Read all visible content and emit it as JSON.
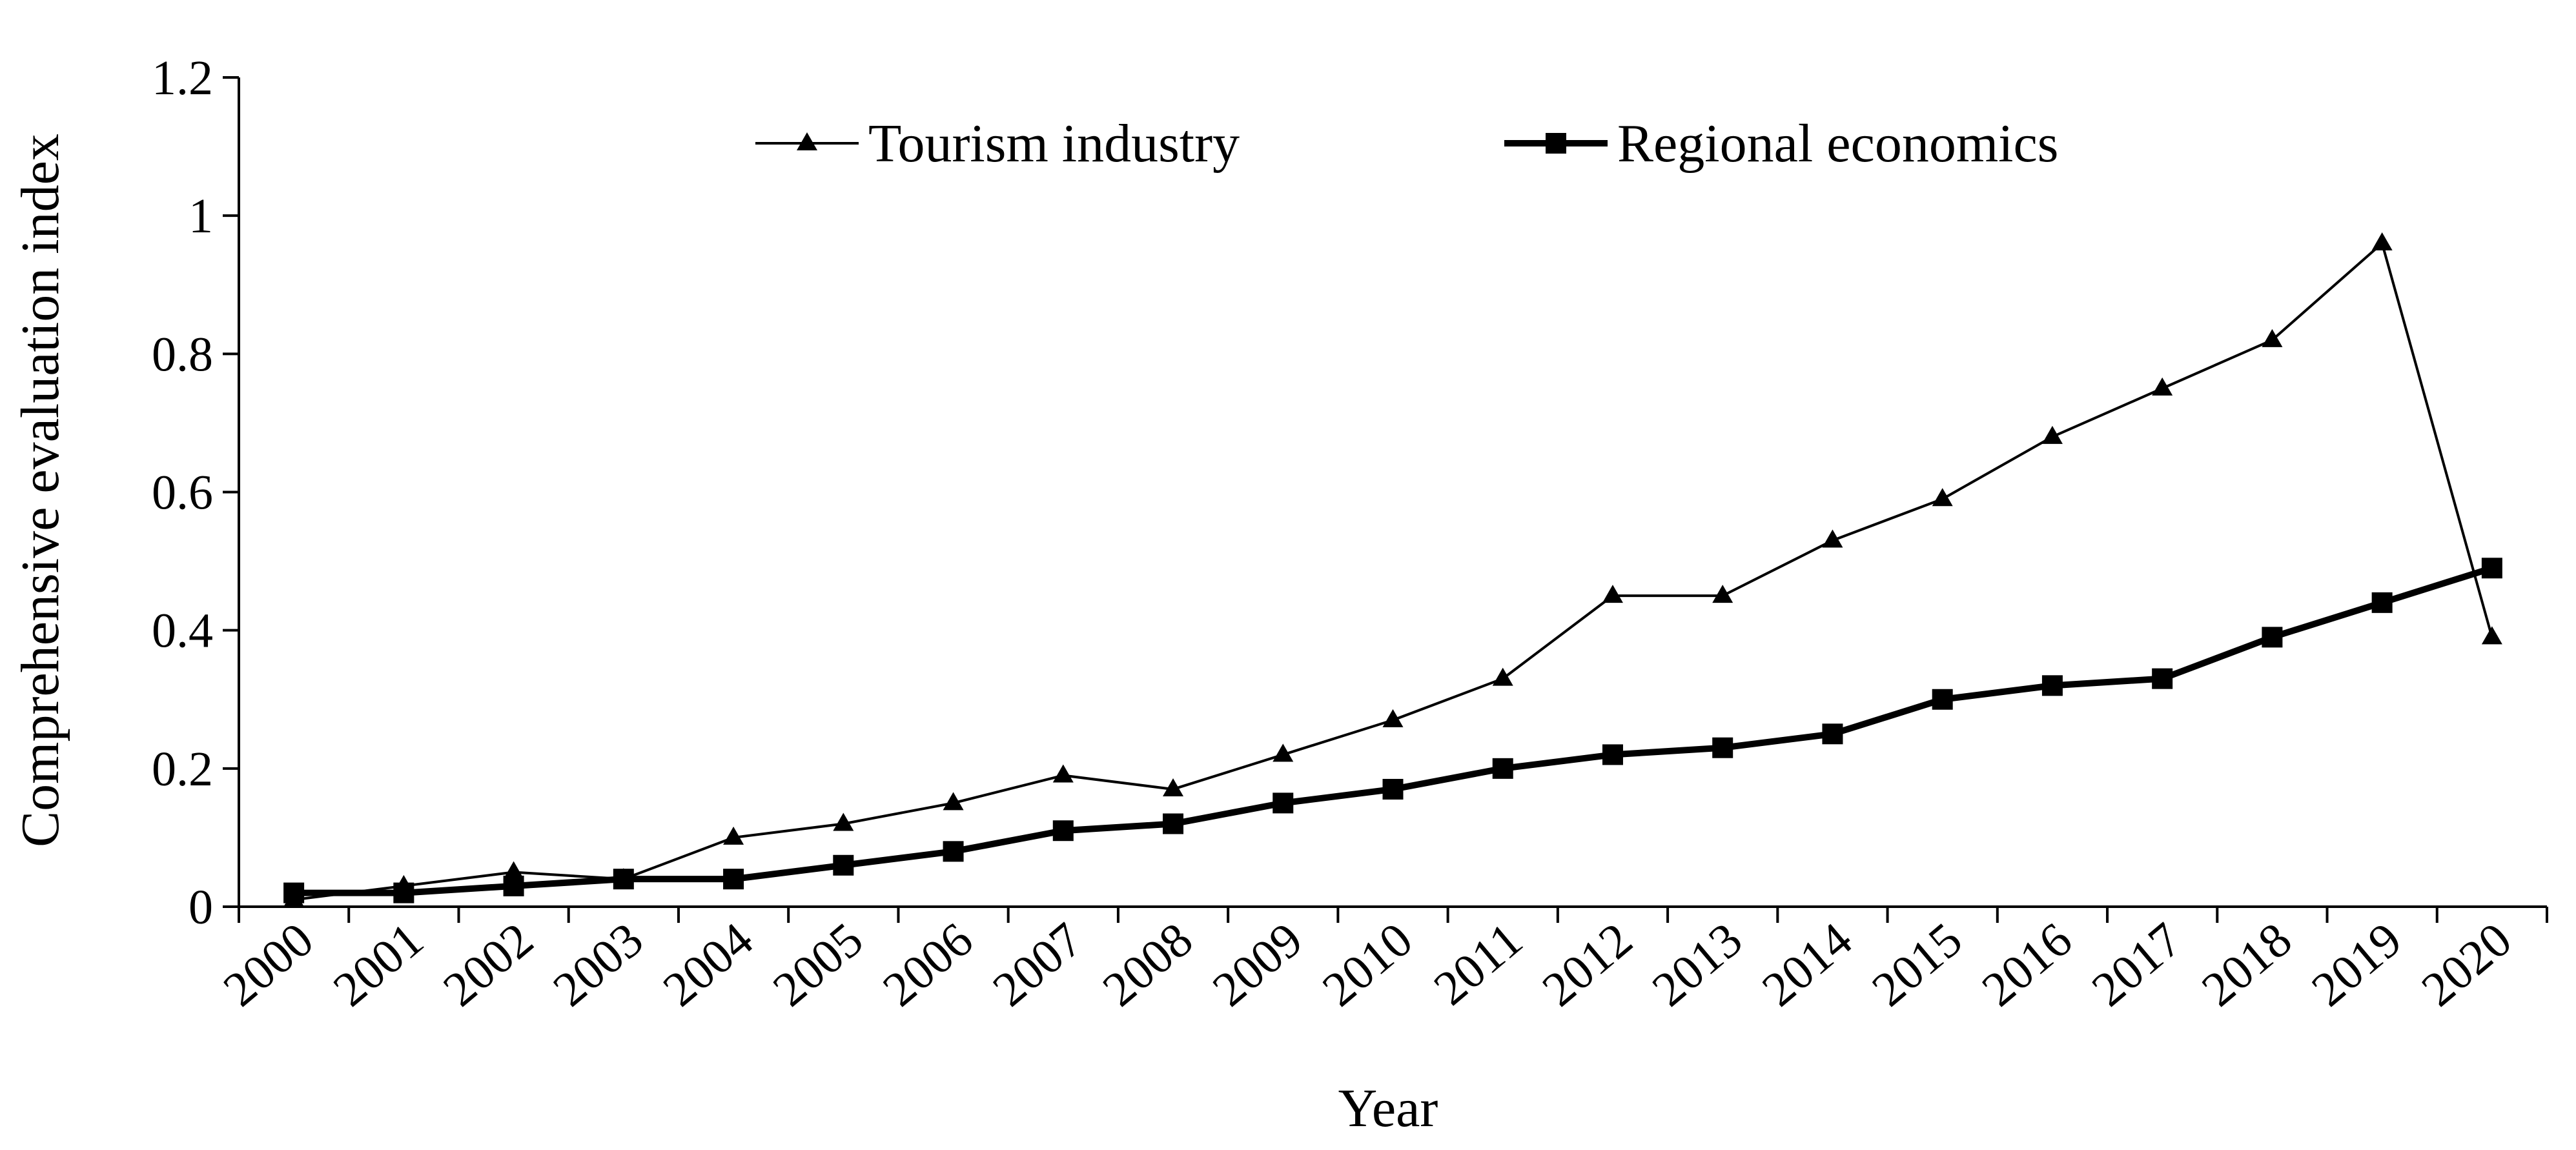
{
  "chart_data": {
    "type": "line",
    "title": "",
    "xlabel": "Year",
    "ylabel": "Comprehensive evaluation index",
    "ylim": [
      0,
      1.2
    ],
    "y_ticks": [
      0,
      0.2,
      0.4,
      0.6,
      0.8,
      1,
      1.2
    ],
    "y_tick_labels": [
      "0",
      "0.2",
      "0.4",
      "0.6",
      "0.8",
      "1",
      "1.2"
    ],
    "grid": false,
    "legend_position": "top",
    "categories": [
      "2000",
      "2001",
      "2002",
      "2003",
      "2004",
      "2005",
      "2006",
      "2007",
      "2008",
      "2009",
      "2010",
      "2011",
      "2012",
      "2013",
      "2014",
      "2015",
      "2016",
      "2017",
      "2018",
      "2019",
      "2020"
    ],
    "series": [
      {
        "name": "Tourism industry",
        "marker": "triangle",
        "line_weight": "thin",
        "color": "#000000",
        "values": [
          0.01,
          0.03,
          0.05,
          0.04,
          0.1,
          0.12,
          0.15,
          0.19,
          0.17,
          0.22,
          0.27,
          0.33,
          0.45,
          0.45,
          0.53,
          0.59,
          0.68,
          0.75,
          0.82,
          0.96,
          0.39
        ]
      },
      {
        "name": "Regional economics",
        "marker": "square",
        "line_weight": "thick",
        "color": "#000000",
        "values": [
          0.02,
          0.02,
          0.03,
          0.04,
          0.04,
          0.06,
          0.08,
          0.11,
          0.12,
          0.15,
          0.17,
          0.2,
          0.22,
          0.23,
          0.25,
          0.3,
          0.32,
          0.33,
          0.39,
          0.44,
          0.49
        ]
      }
    ]
  }
}
